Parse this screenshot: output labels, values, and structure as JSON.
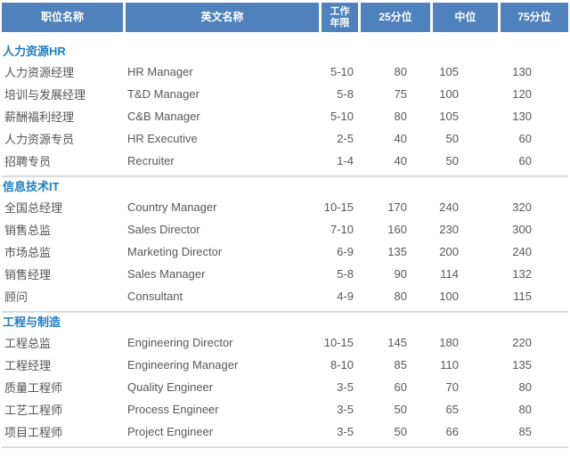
{
  "table": {
    "colors": {
      "header_bg": "#4f81bd",
      "header_text": "#ffffff",
      "section_title": "#1e7dc2",
      "body_text": "#595959",
      "divider": "#dcdcdc"
    },
    "columns": [
      {
        "key": "position",
        "label": "职位名称"
      },
      {
        "key": "english",
        "label": "英文名称"
      },
      {
        "key": "years",
        "label": "工作\n年限"
      },
      {
        "key": "p25",
        "label": "25分位"
      },
      {
        "key": "median",
        "label": "中位"
      },
      {
        "key": "p75",
        "label": "75分位"
      }
    ],
    "sections": [
      {
        "title": "人力资源HR",
        "rows": [
          {
            "position": "人力资源经理",
            "english": "HR Manager",
            "years": "5-10",
            "p25": "80",
            "median": "105",
            "p75": "130"
          },
          {
            "position": "培训与发展经理",
            "english": "T&D Manager",
            "years": "5-8",
            "p25": "75",
            "median": "100",
            "p75": "120"
          },
          {
            "position": "薪酬福利经理",
            "english": "C&B Manager",
            "years": "5-10",
            "p25": "80",
            "median": "105",
            "p75": "130"
          },
          {
            "position": "人力资源专员",
            "english": "HR Executive",
            "years": "2-5",
            "p25": "40",
            "median": "50",
            "p75": "60"
          },
          {
            "position": "招聘专员",
            "english": "Recruiter",
            "years": "1-4",
            "p25": "40",
            "median": "50",
            "p75": "60"
          }
        ]
      },
      {
        "title": "信息技术IT",
        "rows": [
          {
            "position": "全国总经理",
            "english": "Country Manager",
            "years": "10-15",
            "p25": "170",
            "median": "240",
            "p75": "320"
          },
          {
            "position": "销售总监",
            "english": "Sales Director",
            "years": "7-10",
            "p25": "160",
            "median": "230",
            "p75": "300"
          },
          {
            "position": "市场总监",
            "english": "Marketing Director",
            "years": "6-9",
            "p25": "135",
            "median": "200",
            "p75": "240"
          },
          {
            "position": "销售经理",
            "english": "Sales Manager",
            "years": "5-8",
            "p25": "90",
            "median": "114",
            "p75": "132"
          },
          {
            "position": "顾问",
            "english": "Consultant",
            "years": "4-9",
            "p25": "80",
            "median": "100",
            "p75": "115"
          }
        ]
      },
      {
        "title": "工程与制造",
        "rows": [
          {
            "position": "工程总监",
            "english": "Engineering Director",
            "years": "10-15",
            "p25": "145",
            "median": "180",
            "p75": "220"
          },
          {
            "position": "工程经理",
            "english": "Engineering Manager",
            "years": "8-10",
            "p25": "85",
            "median": "110",
            "p75": "135"
          },
          {
            "position": "质量工程师",
            "english": "Quality Engineer",
            "years": "3-5",
            "p25": "60",
            "median": "70",
            "p75": "80"
          },
          {
            "position": "工艺工程师",
            "english": "Process Engineer",
            "years": "3-5",
            "p25": "50",
            "median": "65",
            "p75": "80"
          },
          {
            "position": "项目工程师",
            "english": "Project Engineer",
            "years": "3-5",
            "p25": "50",
            "median": "66",
            "p75": "85"
          }
        ]
      }
    ]
  }
}
